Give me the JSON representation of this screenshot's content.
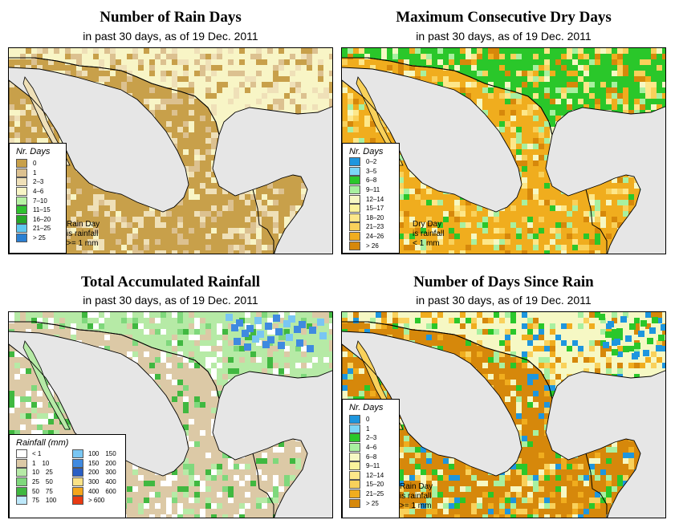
{
  "panels": {
    "rain_days": {
      "title": "Number of Rain Days",
      "subtitle": "in past 30 days, as of  19 Dec. 2011",
      "legend_title": "Nr. Days",
      "legend": [
        {
          "label": "0",
          "color": "#c8a04a"
        },
        {
          "label": "1",
          "color": "#dcc190"
        },
        {
          "label": "2–3",
          "color": "#efe0b8"
        },
        {
          "label": "4–6",
          "color": "#f8f5c6"
        },
        {
          "label": "7–10",
          "color": "#b7f2a4"
        },
        {
          "label": "11–15",
          "color": "#2fc12f"
        },
        {
          "label": "16–20",
          "color": "#27a827"
        },
        {
          "label": "21–25",
          "color": "#5fc8f0"
        },
        {
          "label": "> 25",
          "color": "#2a7fd2"
        }
      ],
      "note": [
        "Rain Day",
        "is rainfall",
        ">= 1 mm"
      ]
    },
    "dry_days": {
      "title": "Maximum Consecutive Dry Days",
      "subtitle": "in past 30 days, as of  19 Dec. 2011",
      "legend_title": "Nr. Days",
      "legend": [
        {
          "label": "0–2",
          "color": "#1e96de"
        },
        {
          "label": "3–5",
          "color": "#7dd6f6"
        },
        {
          "label": "6–8",
          "color": "#2ac72a"
        },
        {
          "label": "9–11",
          "color": "#a8f0a0"
        },
        {
          "label": "12–14",
          "color": "#f6f8c4"
        },
        {
          "label": "15–17",
          "color": "#fbf39c"
        },
        {
          "label": "18–20",
          "color": "#fde78a"
        },
        {
          "label": "21–23",
          "color": "#f9d15b"
        },
        {
          "label": "24–26",
          "color": "#f0ad1e"
        },
        {
          "label": "> 26",
          "color": "#d6880b"
        }
      ],
      "note": [
        "Dry Day",
        "is rainfall",
        "< 1 mm"
      ]
    },
    "total_rain": {
      "title": "Total Accumulated Rainfall",
      "subtitle": "in past 30 days, as of  19 Dec. 2011",
      "legend_title": "Rainfall (mm)",
      "legend_left": [
        {
          "lo": "< 1",
          "hi": "",
          "color": "#ffffff"
        },
        {
          "lo": "1",
          "hi": "10",
          "color": "#dcc9a6"
        },
        {
          "lo": "10",
          "hi": "25",
          "color": "#b6eaa6"
        },
        {
          "lo": "25",
          "hi": "50",
          "color": "#7fd87c"
        },
        {
          "lo": "50",
          "hi": "75",
          "color": "#40b840"
        },
        {
          "lo": "75",
          "hi": "100",
          "color": "#bde8fa"
        }
      ],
      "legend_right": [
        {
          "lo": "100",
          "hi": "150",
          "color": "#79c6f3"
        },
        {
          "lo": "150",
          "hi": "200",
          "color": "#3f8ae0"
        },
        {
          "lo": "200",
          "hi": "300",
          "color": "#2a5fc4"
        },
        {
          "lo": "300",
          "hi": "400",
          "color": "#fbe286"
        },
        {
          "lo": "400",
          "hi": "600",
          "color": "#f4a61c"
        },
        {
          "lo": "> 600",
          "hi": "",
          "color": "#e83a12"
        }
      ]
    },
    "since_rain": {
      "title": "Number of Days Since Rain",
      "subtitle": "in past 30 days, as of  19 Dec. 2011",
      "legend_title": "Nr. Days",
      "legend": [
        {
          "label": "0",
          "color": "#1e96de"
        },
        {
          "label": "1",
          "color": "#7dd6f6"
        },
        {
          "label": "2–3",
          "color": "#2ac72a"
        },
        {
          "label": "4–6",
          "color": "#a8f0a0"
        },
        {
          "label": "6–8",
          "color": "#f6f8c4"
        },
        {
          "label": "9–11",
          "color": "#fbf39c"
        },
        {
          "label": "12–14",
          "color": "#fde78a"
        },
        {
          "label": "15–20",
          "color": "#f9d15b"
        },
        {
          "label": "21–25",
          "color": "#f0ad1e"
        },
        {
          "label": "> 25",
          "color": "#d6880b"
        }
      ],
      "note": [
        "Rain Day",
        "is rainfall",
        ">= 1 mm"
      ]
    }
  },
  "colors": {
    "ocean": "#e6e6e6",
    "border": "#000000"
  }
}
